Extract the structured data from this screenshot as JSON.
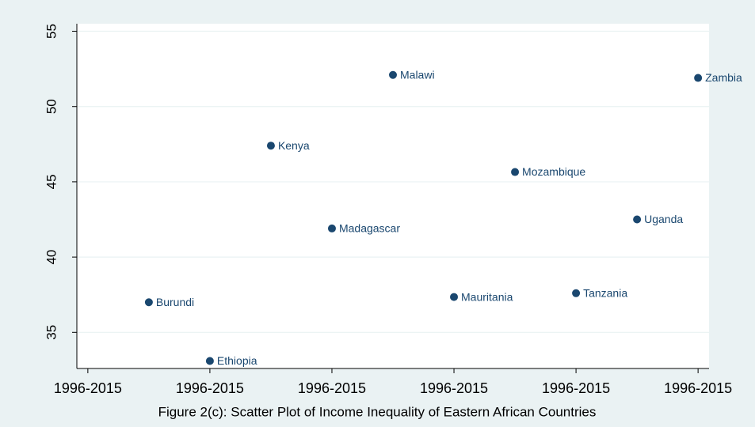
{
  "chart_data": {
    "type": "scatter",
    "caption": "Figure 2(c): Scatter Plot of Income Inequality of Eastern African Countries",
    "labels": [
      "Burundi",
      "Ethiopia",
      "Kenya",
      "Madagascar",
      "Malawi",
      "Mauritania",
      "Mozambique",
      "Tanzania",
      "Uganda",
      "Zambia"
    ],
    "x": [
      1,
      2,
      3,
      4,
      5,
      6,
      7,
      8,
      9,
      10
    ],
    "values": [
      37.0,
      33.1,
      47.4,
      41.9,
      52.1,
      37.35,
      45.65,
      37.6,
      42.5,
      51.9
    ],
    "color": "#1a476f",
    "xlim": [
      -0.18,
      10.18
    ],
    "xticks": [
      {
        "value": 0,
        "label": "1996-2015"
      },
      {
        "value": 2,
        "label": "1996-2015"
      },
      {
        "value": 4,
        "label": "1996-2015"
      },
      {
        "value": 6,
        "label": "1996-2015"
      },
      {
        "value": 8,
        "label": "1996-2015"
      },
      {
        "value": 10,
        "label": "1996-2015"
      }
    ],
    "ylim": [
      32.6,
      55.5
    ],
    "yticks": [
      35,
      40,
      45,
      50,
      55
    ],
    "grid": true
  }
}
